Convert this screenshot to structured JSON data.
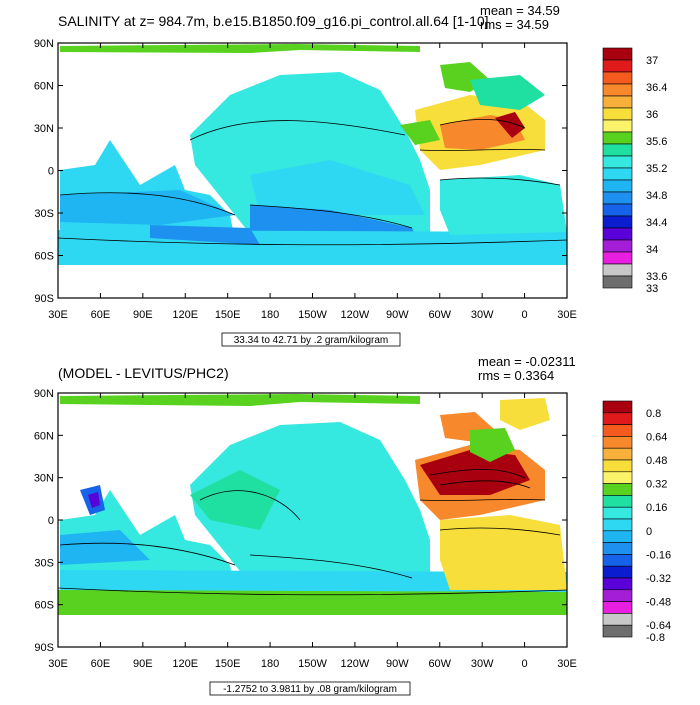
{
  "chart_data": [
    {
      "type": "heatmap",
      "title": "SALINITY at z= 984.7m, b.e15.B1850.f09_g16.pi_control.all.64 [1-10]",
      "stats": {
        "mean_label": "mean = 34.59",
        "rms_label": "rms = 34.59"
      },
      "note": "33.34 to 42.71 by .2 gram/kilogram",
      "x_ticks": [
        "30E",
        "60E",
        "90E",
        "120E",
        "150E",
        "180",
        "150W",
        "120W",
        "90W",
        "60W",
        "30W",
        "0",
        "30E"
      ],
      "y_ticks": [
        "90N",
        "60N",
        "30N",
        "0",
        "30S",
        "60S",
        "90S"
      ],
      "colorbar": {
        "labels": [
          "37",
          "36.4",
          "36",
          "35.6",
          "35.2",
          "34.8",
          "34.4",
          "34",
          "33.6",
          "33"
        ],
        "colors": [
          "#a8000f",
          "#e01a1a",
          "#f55a1e",
          "#f7882c",
          "#f7b03a",
          "#f8de3a",
          "#fbf36a",
          "#58d21e",
          "#1fe0a0",
          "#35e8e0",
          "#2fd8f2",
          "#1fb4f2",
          "#1e90f0",
          "#1662e8",
          "#0a1ed0",
          "#5a00d8",
          "#a41ed8",
          "#e81ee0",
          "#c8c8c8",
          "#6e6e6e"
        ]
      }
    },
    {
      "type": "heatmap",
      "title": "(MODEL - LEVITUS/PHC2)",
      "stats": {
        "mean_label": "mean = -0.02311",
        "rms_label": "rms = 0.3364"
      },
      "note": "-1.2752 to 3.9811 by .08 gram/kilogram",
      "x_ticks": [
        "30E",
        "60E",
        "90E",
        "120E",
        "150E",
        "180",
        "150W",
        "120W",
        "90W",
        "60W",
        "30W",
        "0",
        "30E"
      ],
      "y_ticks": [
        "90N",
        "60N",
        "30N",
        "0",
        "30S",
        "60S",
        "90S"
      ],
      "colorbar": {
        "labels": [
          "0.8",
          "0.64",
          "0.48",
          "0.32",
          "0.16",
          "0",
          "-0.16",
          "-0.32",
          "-0.48",
          "-0.64",
          "-0.8"
        ],
        "colors": [
          "#a8000f",
          "#e01a1a",
          "#f55a1e",
          "#f7882c",
          "#f7b03a",
          "#f8de3a",
          "#fbf36a",
          "#58d21e",
          "#1fe0a0",
          "#35e8e0",
          "#2fd8f2",
          "#1fb4f2",
          "#1e90f0",
          "#1662e8",
          "#0a1ed0",
          "#5a00d8",
          "#a41ed8",
          "#e81ee0",
          "#c8c8c8",
          "#6e6e6e"
        ]
      }
    }
  ]
}
